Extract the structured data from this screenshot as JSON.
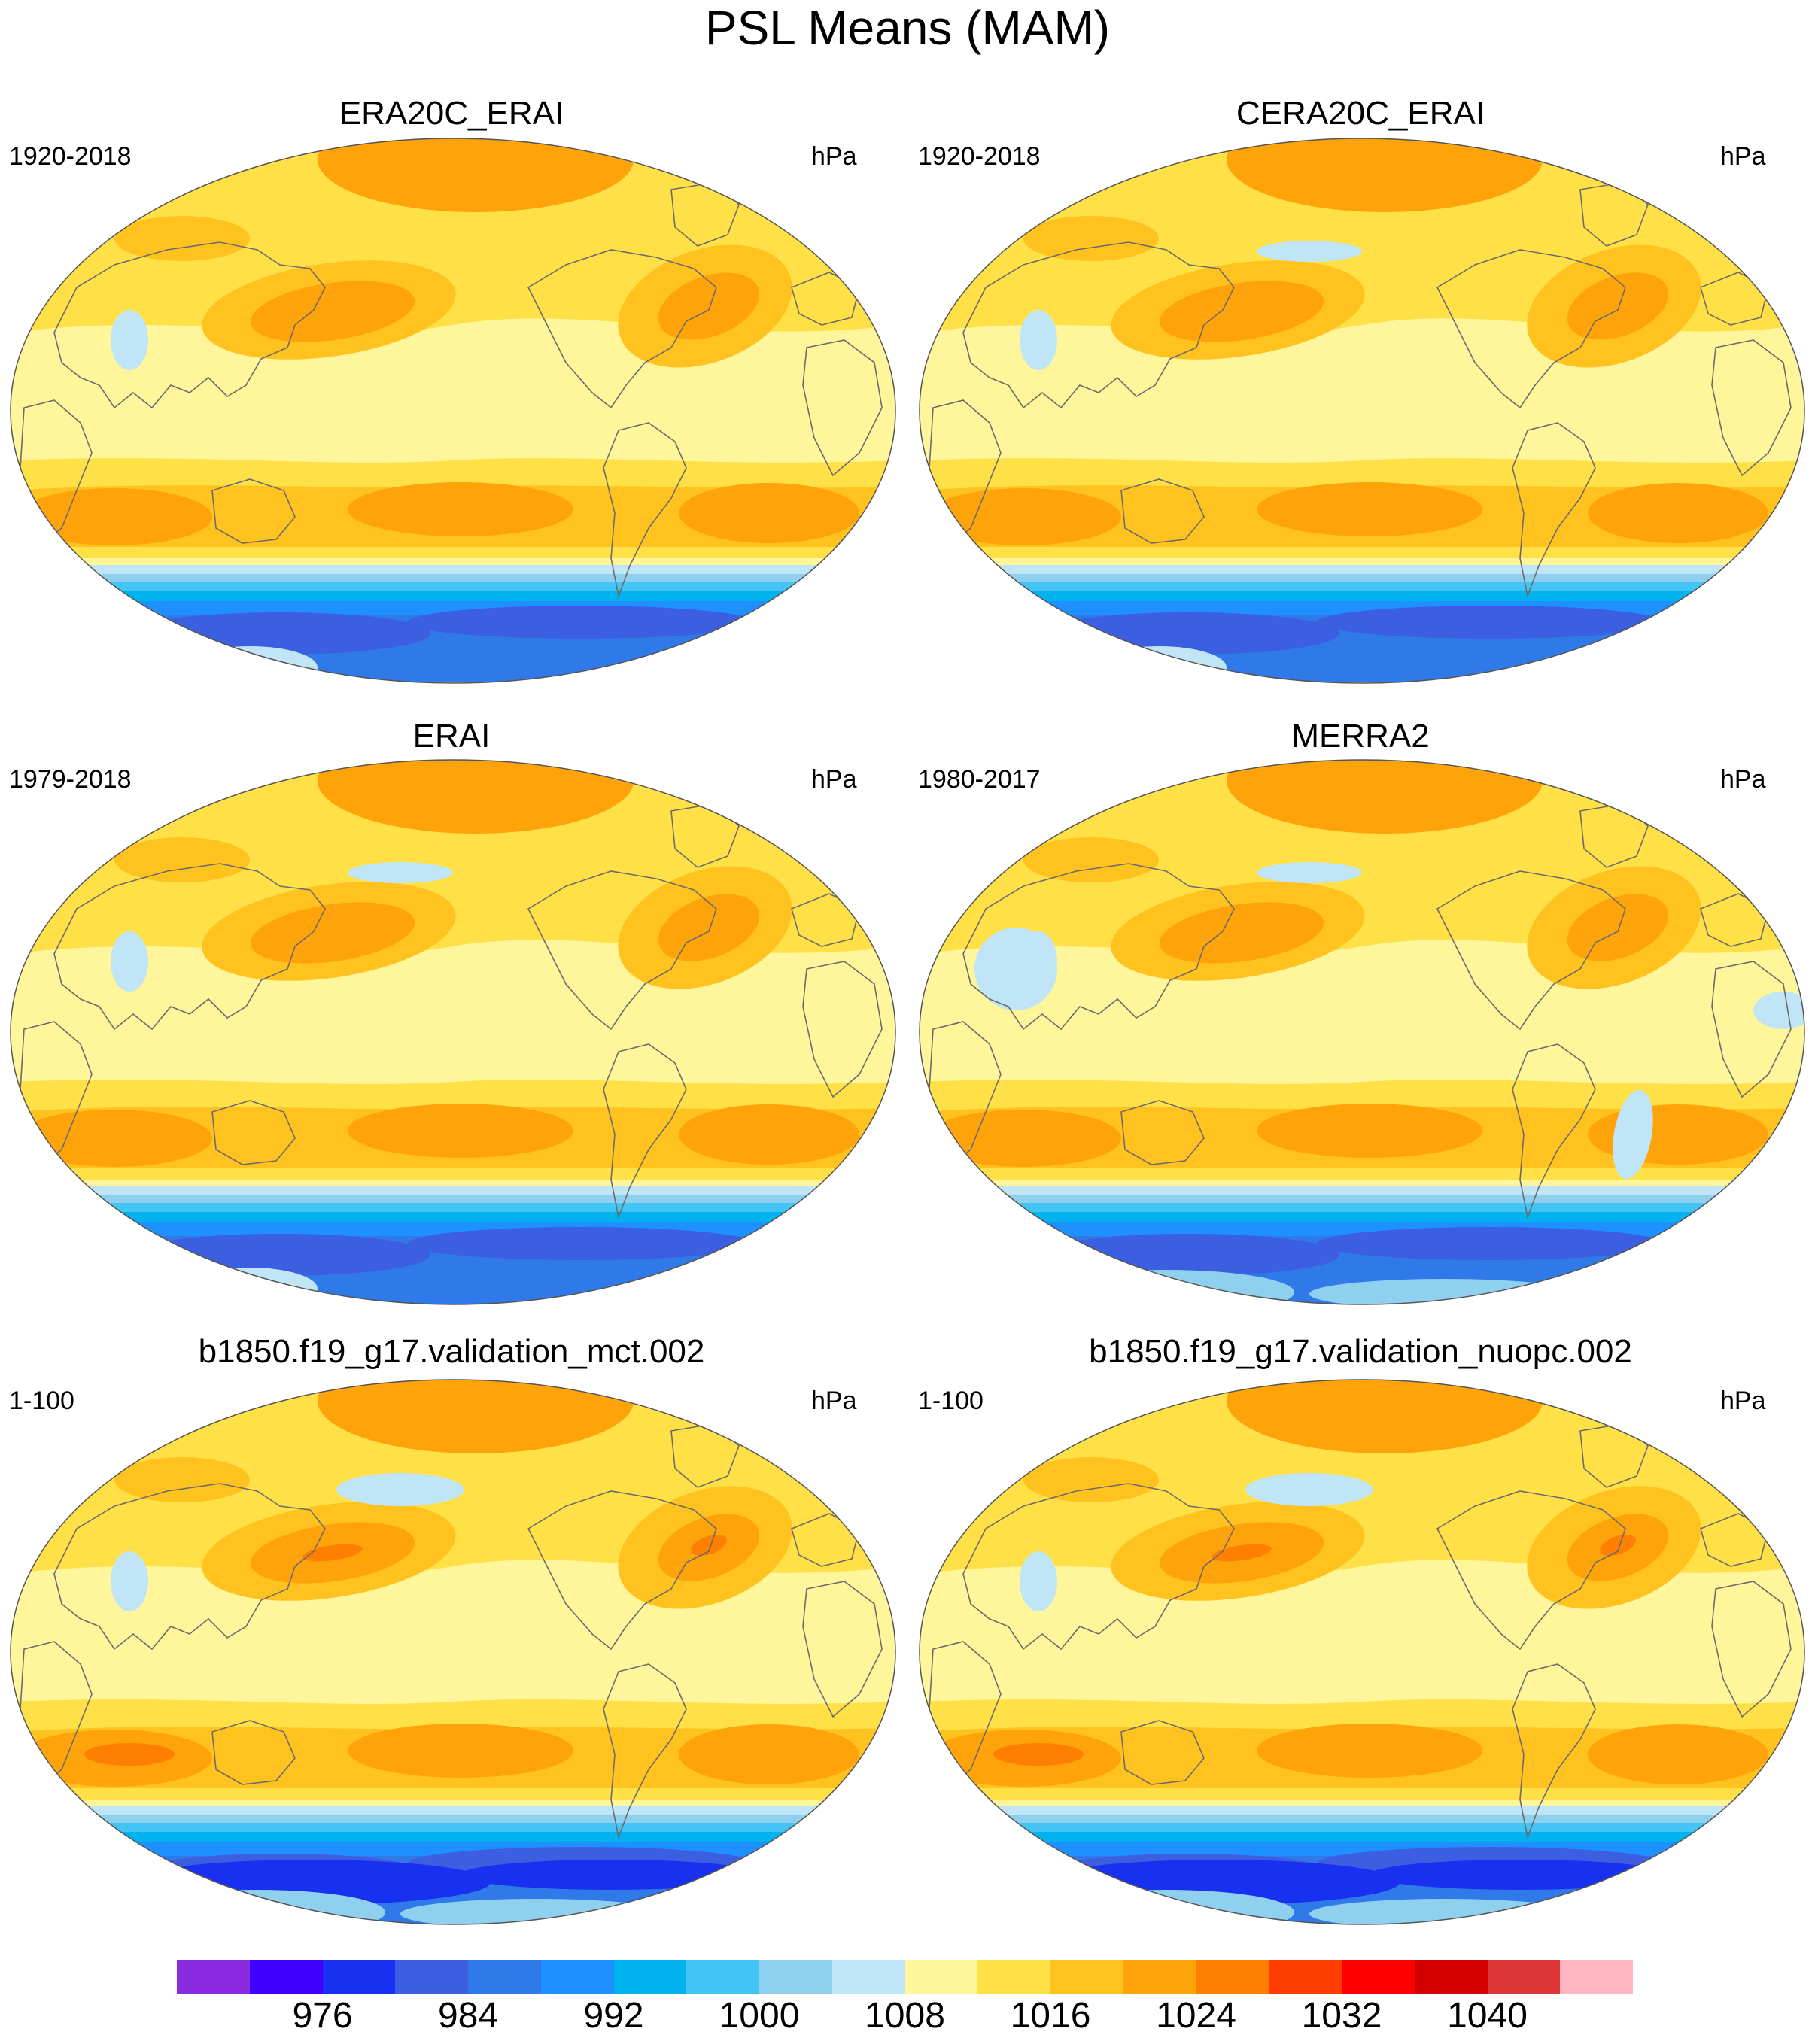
{
  "title": "PSL Means (MAM)",
  "panels": [
    {
      "title": "ERA20C_ERAI",
      "period": "1920-2018",
      "units": "hPa",
      "variant": "era20c"
    },
    {
      "title": "CERA20C_ERAI",
      "period": "1920-2018",
      "units": "hPa",
      "variant": "cera20c"
    },
    {
      "title": "ERAI",
      "period": "1979-2018",
      "units": "hPa",
      "variant": "erai"
    },
    {
      "title": "MERRA2",
      "period": "1980-2017",
      "units": "hPa",
      "variant": "merra2"
    },
    {
      "title": "b1850.f19_g17.validation_mct.002",
      "period": "1-100",
      "units": "hPa",
      "variant": "model"
    },
    {
      "title": "b1850.f19_g17.validation_nuopc.002",
      "period": "1-100",
      "units": "hPa",
      "variant": "model"
    }
  ],
  "colorbar": {
    "colors": [
      "#8a2be2",
      "#3f00ff",
      "#1830ef",
      "#3b5fe0",
      "#2f7ae8",
      "#1e90ff",
      "#00b2ee",
      "#42c5f5",
      "#8fd0ee",
      "#bfe5f7",
      "#fff59a",
      "#ffe047",
      "#ffc21f",
      "#ffa30a",
      "#ff7f00",
      "#ff3d00",
      "#ff0000",
      "#d40000",
      "#dc3535",
      "#ffb6c1"
    ],
    "tick_labels": [
      "976",
      "984",
      "992",
      "1000",
      "1008",
      "1016",
      "1024",
      "1032",
      "1040"
    ]
  }
}
